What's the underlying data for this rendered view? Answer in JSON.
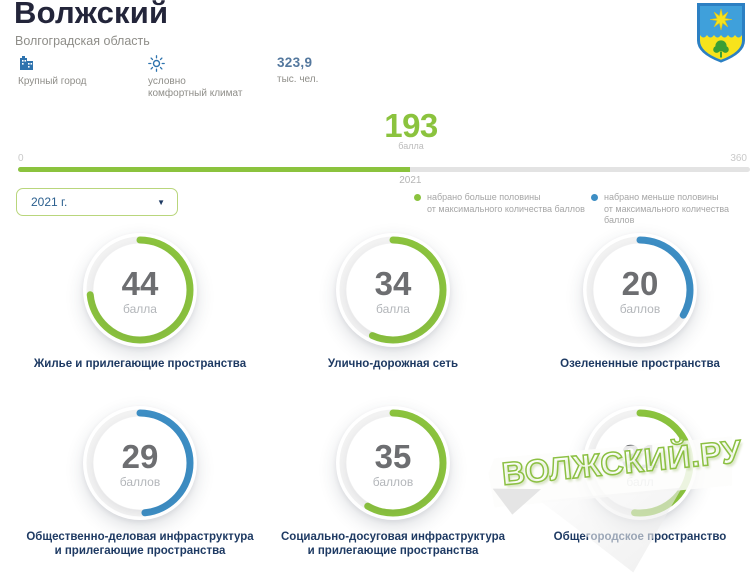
{
  "header": {
    "city": "Волжский",
    "region": "Волгоградская область",
    "facts": {
      "size": {
        "label": "Крупный город"
      },
      "climate": {
        "line1": "условно",
        "line2": "комфортный климат"
      },
      "population": {
        "value": "323,9",
        "unit": "тыс. чел."
      }
    }
  },
  "score": {
    "value": "193",
    "unit": "балла",
    "scale_min": "0",
    "scale_max": "360",
    "marker": "2021",
    "percent": 53.6
  },
  "year_select": {
    "value": "2021 г."
  },
  "legend": {
    "more": {
      "line1": "набрано больше половины",
      "line2": "от максимального количества баллов"
    },
    "less": {
      "line1": "набрано меньше половины",
      "line2": "от максимального количества баллов"
    }
  },
  "gauges": [
    {
      "value": "44",
      "unit": "балла",
      "max": 60,
      "color": "green",
      "label": "Жилье и прилегающие пространства"
    },
    {
      "value": "34",
      "unit": "балла",
      "max": 60,
      "color": "green",
      "label": "Улично-дорожная сеть"
    },
    {
      "value": "20",
      "unit": "баллов",
      "max": 60,
      "color": "blue",
      "label": "Озелененные пространства"
    },
    {
      "value": "29",
      "unit": "баллов",
      "max": 60,
      "color": "blue",
      "label": "Общественно-деловая инфраструктура\nи прилегающие пространства"
    },
    {
      "value": "35",
      "unit": "баллов",
      "max": 60,
      "color": "green",
      "label": "Социально-досуговая инфраструктура\nи прилегающие пространства"
    },
    {
      "value": "31",
      "unit": "балл",
      "max": 60,
      "color": "green",
      "label": "Общегородское пространство"
    }
  ],
  "watermark": {
    "text": "ВОЛЖСКИЙ.РУ"
  },
  "colors": {
    "green": "#8bc33e",
    "blue": "#3d8ec4",
    "accent_navy": "#1e3a63"
  }
}
